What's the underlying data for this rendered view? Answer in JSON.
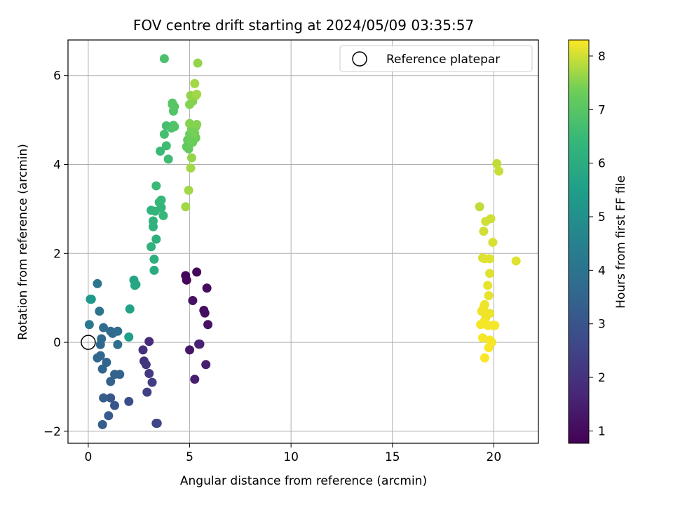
{
  "chart_data": {
    "type": "scatter",
    "title": "FOV centre drift starting at 2024/05/09 03:35:57",
    "xlabel": "Angular distance from reference (arcmin)",
    "ylabel": "Rotation from reference (arcmin)",
    "xlim": [
      -1,
      22.2
    ],
    "ylim": [
      -2.27,
      6.8
    ],
    "xticks": [
      0,
      5,
      10,
      15,
      20
    ],
    "yticks": [
      -2,
      0,
      2,
      4,
      6
    ],
    "xtick_labels": [
      "0",
      "5",
      "10",
      "15",
      "20"
    ],
    "ytick_labels": [
      "−2",
      "0",
      "2",
      "4",
      "6"
    ],
    "grid": true,
    "legend": {
      "placement": "top-right",
      "entries": [
        "Reference platepar"
      ]
    },
    "reference_point": {
      "x": 0,
      "y": 0
    },
    "colorbar": {
      "label": "Hours from first FF file",
      "colormap": "viridis",
      "range": [
        0.77,
        8.3
      ],
      "ticks": [
        1,
        2,
        3,
        4,
        5,
        6,
        7,
        8
      ],
      "tick_labels": [
        "1",
        "2",
        "3",
        "4",
        "5",
        "6",
        "7",
        "8"
      ]
    },
    "points": [
      {
        "x": 4.8,
        "y": 1.5,
        "h": 0.85
      },
      {
        "x": 4.85,
        "y": 1.4,
        "h": 0.9
      },
      {
        "x": 5.35,
        "y": 1.58,
        "h": 0.95
      },
      {
        "x": 5.85,
        "y": 1.22,
        "h": 1.0
      },
      {
        "x": 5.7,
        "y": 0.72,
        "h": 1.05
      },
      {
        "x": 5.75,
        "y": 0.66,
        "h": 1.1
      },
      {
        "x": 5.15,
        "y": 0.94,
        "h": 1.15
      },
      {
        "x": 5.9,
        "y": 0.4,
        "h": 1.2
      },
      {
        "x": 5.0,
        "y": -0.17,
        "h": 1.3
      },
      {
        "x": 5.5,
        "y": -0.04,
        "h": 1.4
      },
      {
        "x": 5.8,
        "y": -0.5,
        "h": 1.45
      },
      {
        "x": 5.25,
        "y": -0.83,
        "h": 1.5
      },
      {
        "x": 5.45,
        "y": -0.04,
        "h": 1.6
      },
      {
        "x": 3.0,
        "y": 0.02,
        "h": 1.8
      },
      {
        "x": 2.7,
        "y": -0.17,
        "h": 1.9
      },
      {
        "x": 2.75,
        "y": -0.42,
        "h": 2.0
      },
      {
        "x": 2.85,
        "y": -0.5,
        "h": 2.1
      },
      {
        "x": 3.0,
        "y": -0.7,
        "h": 2.2
      },
      {
        "x": 3.15,
        "y": -0.9,
        "h": 2.3
      },
      {
        "x": 2.9,
        "y": -1.12,
        "h": 2.4
      },
      {
        "x": 3.35,
        "y": -1.82,
        "h": 2.5
      },
      {
        "x": 3.4,
        "y": -1.82,
        "h": 2.6
      },
      {
        "x": 2.0,
        "y": -1.33,
        "h": 2.8
      },
      {
        "x": 1.3,
        "y": -1.42,
        "h": 3.0
      },
      {
        "x": 1.1,
        "y": -1.25,
        "h": 3.1
      },
      {
        "x": 1.0,
        "y": -1.65,
        "h": 3.2
      },
      {
        "x": 0.7,
        "y": -1.85,
        "h": 3.3
      },
      {
        "x": 0.75,
        "y": -1.25,
        "h": 3.3
      },
      {
        "x": 1.1,
        "y": -0.88,
        "h": 3.4
      },
      {
        "x": 1.3,
        "y": -0.72,
        "h": 3.4
      },
      {
        "x": 1.55,
        "y": -0.72,
        "h": 3.4
      },
      {
        "x": 0.9,
        "y": -0.45,
        "h": 3.5
      },
      {
        "x": 0.7,
        "y": -0.6,
        "h": 3.5
      },
      {
        "x": 0.45,
        "y": -0.35,
        "h": 3.6
      },
      {
        "x": 0.6,
        "y": -0.3,
        "h": 3.6
      },
      {
        "x": 0.6,
        "y": -0.05,
        "h": 3.6
      },
      {
        "x": 0.65,
        "y": 0.08,
        "h": 3.7
      },
      {
        "x": 1.1,
        "y": 0.25,
        "h": 3.7
      },
      {
        "x": 1.2,
        "y": 0.2,
        "h": 3.7
      },
      {
        "x": 1.45,
        "y": 0.25,
        "h": 3.8
      },
      {
        "x": 0.75,
        "y": 0.33,
        "h": 3.8
      },
      {
        "x": 1.45,
        "y": -0.05,
        "h": 3.9
      },
      {
        "x": 0.55,
        "y": 0.7,
        "h": 4.0
      },
      {
        "x": 0.45,
        "y": 1.32,
        "h": 4.1
      },
      {
        "x": 0.05,
        "y": 0.4,
        "h": 4.2
      },
      {
        "x": 0.15,
        "y": 0.97,
        "h": 5.2
      },
      {
        "x": 0.1,
        "y": 0.97,
        "h": 5.3
      },
      {
        "x": 2.0,
        "y": 0.12,
        "h": 5.5
      },
      {
        "x": 2.05,
        "y": 0.75,
        "h": 5.6
      },
      {
        "x": 2.25,
        "y": 1.4,
        "h": 5.7
      },
      {
        "x": 2.35,
        "y": 1.3,
        "h": 5.7
      },
      {
        "x": 2.3,
        "y": 1.28,
        "h": 5.8
      },
      {
        "x": 3.25,
        "y": 1.62,
        "h": 6.0
      },
      {
        "x": 3.25,
        "y": 1.87,
        "h": 6.1
      },
      {
        "x": 3.35,
        "y": 2.32,
        "h": 6.1
      },
      {
        "x": 3.1,
        "y": 2.15,
        "h": 6.2
      },
      {
        "x": 3.2,
        "y": 2.6,
        "h": 6.2
      },
      {
        "x": 3.2,
        "y": 2.73,
        "h": 6.2
      },
      {
        "x": 3.1,
        "y": 2.97,
        "h": 6.3
      },
      {
        "x": 3.3,
        "y": 2.95,
        "h": 6.3
      },
      {
        "x": 3.6,
        "y": 3.03,
        "h": 6.3
      },
      {
        "x": 3.5,
        "y": 3.15,
        "h": 6.4
      },
      {
        "x": 3.6,
        "y": 3.2,
        "h": 6.4
      },
      {
        "x": 3.7,
        "y": 2.85,
        "h": 6.4
      },
      {
        "x": 3.35,
        "y": 3.52,
        "h": 6.5
      },
      {
        "x": 3.55,
        "y": 4.3,
        "h": 6.5
      },
      {
        "x": 3.95,
        "y": 4.12,
        "h": 6.6
      },
      {
        "x": 3.85,
        "y": 4.42,
        "h": 6.6
      },
      {
        "x": 3.75,
        "y": 4.68,
        "h": 6.7
      },
      {
        "x": 3.85,
        "y": 4.87,
        "h": 6.7
      },
      {
        "x": 4.1,
        "y": 4.82,
        "h": 6.8
      },
      {
        "x": 4.2,
        "y": 4.88,
        "h": 6.8
      },
      {
        "x": 4.25,
        "y": 4.85,
        "h": 6.9
      },
      {
        "x": 4.2,
        "y": 5.2,
        "h": 6.9
      },
      {
        "x": 4.15,
        "y": 5.35,
        "h": 6.9
      },
      {
        "x": 4.15,
        "y": 5.38,
        "h": 7.0
      },
      {
        "x": 4.25,
        "y": 5.3,
        "h": 7.0
      },
      {
        "x": 3.75,
        "y": 6.38,
        "h": 6.8
      },
      {
        "x": 4.85,
        "y": 4.4,
        "h": 7.1
      },
      {
        "x": 4.95,
        "y": 4.35,
        "h": 7.2
      },
      {
        "x": 4.9,
        "y": 4.55,
        "h": 7.2
      },
      {
        "x": 5.05,
        "y": 4.6,
        "h": 7.2
      },
      {
        "x": 5.15,
        "y": 4.5,
        "h": 7.3
      },
      {
        "x": 5.3,
        "y": 4.6,
        "h": 7.3
      },
      {
        "x": 5.0,
        "y": 4.68,
        "h": 7.3
      },
      {
        "x": 5.25,
        "y": 4.7,
        "h": 7.4
      },
      {
        "x": 5.3,
        "y": 4.85,
        "h": 7.4
      },
      {
        "x": 5.1,
        "y": 4.8,
        "h": 7.4
      },
      {
        "x": 5.0,
        "y": 4.92,
        "h": 7.5
      },
      {
        "x": 5.35,
        "y": 4.9,
        "h": 7.5
      },
      {
        "x": 5.0,
        "y": 5.35,
        "h": 7.5
      },
      {
        "x": 5.15,
        "y": 5.42,
        "h": 7.5
      },
      {
        "x": 5.05,
        "y": 5.55,
        "h": 7.6
      },
      {
        "x": 5.3,
        "y": 5.55,
        "h": 7.6
      },
      {
        "x": 5.35,
        "y": 5.58,
        "h": 7.7
      },
      {
        "x": 5.25,
        "y": 5.82,
        "h": 7.7
      },
      {
        "x": 5.4,
        "y": 6.28,
        "h": 7.6
      },
      {
        "x": 5.1,
        "y": 4.15,
        "h": 7.6
      },
      {
        "x": 5.05,
        "y": 3.92,
        "h": 7.7
      },
      {
        "x": 4.95,
        "y": 3.42,
        "h": 7.7
      },
      {
        "x": 4.8,
        "y": 3.05,
        "h": 7.7
      },
      {
        "x": 19.3,
        "y": 3.05,
        "h": 7.9
      },
      {
        "x": 19.6,
        "y": 2.72,
        "h": 8.0
      },
      {
        "x": 19.85,
        "y": 2.78,
        "h": 8.0
      },
      {
        "x": 19.5,
        "y": 2.5,
        "h": 8.0
      },
      {
        "x": 19.95,
        "y": 2.25,
        "h": 8.05
      },
      {
        "x": 20.15,
        "y": 4.02,
        "h": 7.9
      },
      {
        "x": 20.25,
        "y": 3.85,
        "h": 7.95
      },
      {
        "x": 21.1,
        "y": 1.83,
        "h": 8.1
      },
      {
        "x": 19.45,
        "y": 1.9,
        "h": 8.05
      },
      {
        "x": 19.55,
        "y": 1.88,
        "h": 8.1
      },
      {
        "x": 19.8,
        "y": 1.88,
        "h": 8.1
      },
      {
        "x": 19.8,
        "y": 1.55,
        "h": 8.1
      },
      {
        "x": 19.7,
        "y": 1.28,
        "h": 8.15
      },
      {
        "x": 19.75,
        "y": 1.05,
        "h": 8.15
      },
      {
        "x": 19.55,
        "y": 0.85,
        "h": 8.2
      },
      {
        "x": 19.5,
        "y": 0.78,
        "h": 8.2
      },
      {
        "x": 19.4,
        "y": 0.7,
        "h": 8.2
      },
      {
        "x": 19.8,
        "y": 0.65,
        "h": 8.2
      },
      {
        "x": 19.6,
        "y": 0.55,
        "h": 8.2
      },
      {
        "x": 19.5,
        "y": 0.45,
        "h": 8.25
      },
      {
        "x": 19.35,
        "y": 0.4,
        "h": 8.25
      },
      {
        "x": 19.7,
        "y": 0.38,
        "h": 8.25
      },
      {
        "x": 19.95,
        "y": 0.38,
        "h": 8.25
      },
      {
        "x": 20.05,
        "y": 0.38,
        "h": 8.25
      },
      {
        "x": 19.45,
        "y": 0.1,
        "h": 8.25
      },
      {
        "x": 19.8,
        "y": 0.05,
        "h": 8.25
      },
      {
        "x": 19.9,
        "y": 0.0,
        "h": 8.25
      },
      {
        "x": 19.75,
        "y": -0.12,
        "h": 8.28
      },
      {
        "x": 19.55,
        "y": -0.35,
        "h": 8.28
      }
    ]
  }
}
